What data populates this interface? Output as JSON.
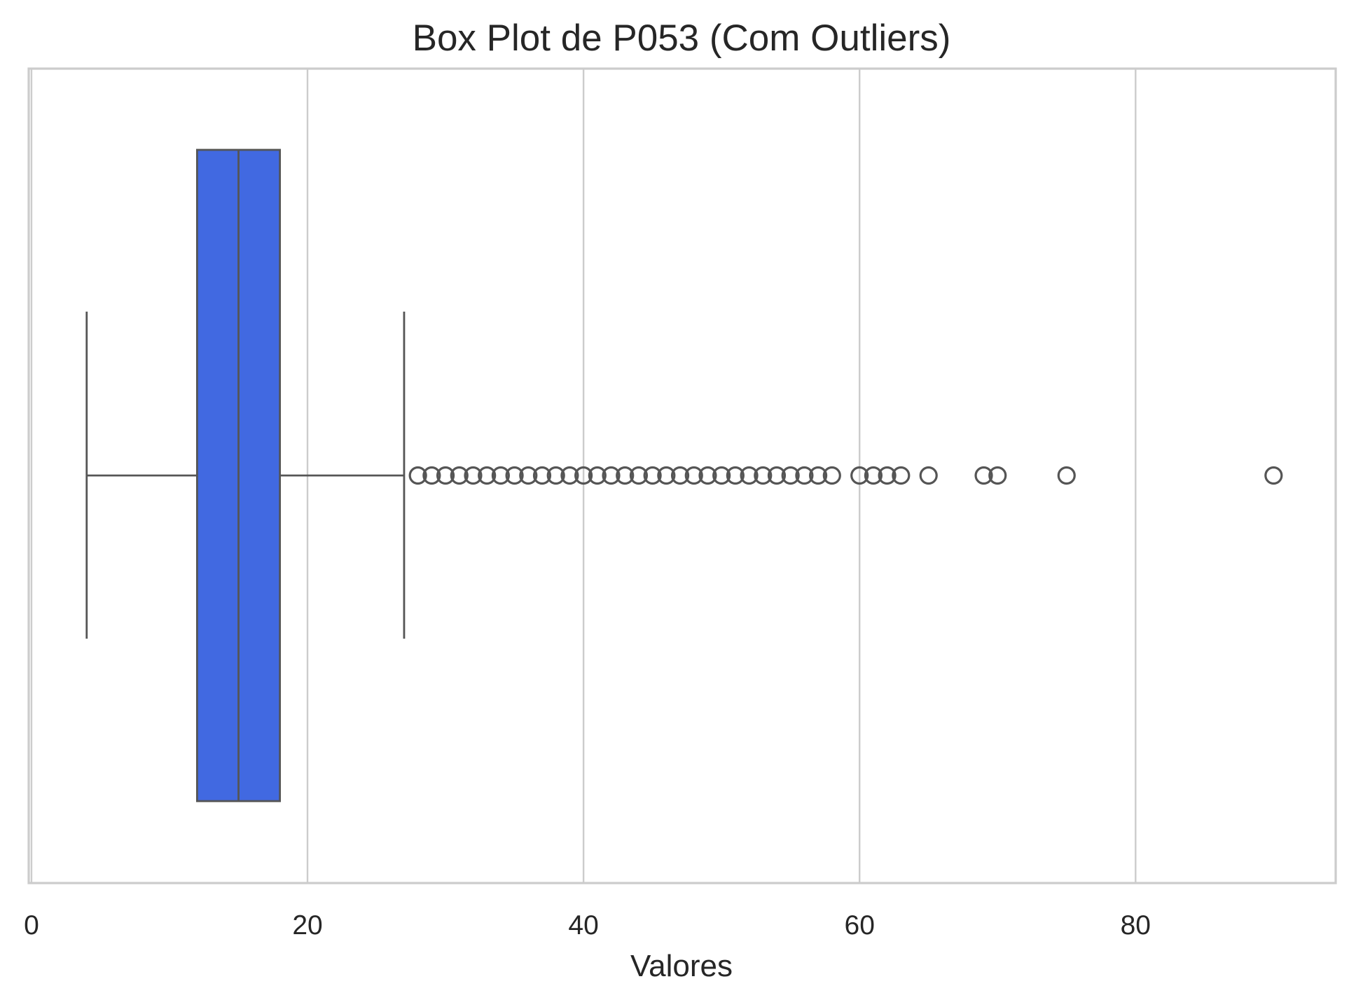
{
  "chart_data": {
    "type": "boxplot",
    "title": "Box Plot de P053 (Com Outliers)",
    "xlabel": "Valores",
    "ylabel": "",
    "orientation": "horizontal",
    "xlim": [
      -0.2,
      94.5
    ],
    "xticks": [
      0,
      20,
      40,
      60,
      80
    ],
    "xtick_labels": [
      "0",
      "20",
      "40",
      "60",
      "80"
    ],
    "grid": "vertical",
    "box_color": "#4169E1",
    "line_color": "#555555",
    "grid_color": "#CCCCCC",
    "frame_color": "#CCCCCC",
    "stats": {
      "whisker_low": 4,
      "q1": 12,
      "median": 15,
      "q3": 18,
      "whisker_high": 27
    },
    "outliers": [
      28,
      29,
      30,
      31,
      32,
      33,
      34,
      35,
      36,
      37,
      38,
      39,
      40,
      41,
      42,
      43,
      44,
      45,
      46,
      47,
      48,
      49,
      50,
      51,
      52,
      53,
      54,
      55,
      56,
      57,
      58,
      60,
      61,
      62,
      63,
      65,
      69,
      70,
      75,
      90
    ]
  }
}
